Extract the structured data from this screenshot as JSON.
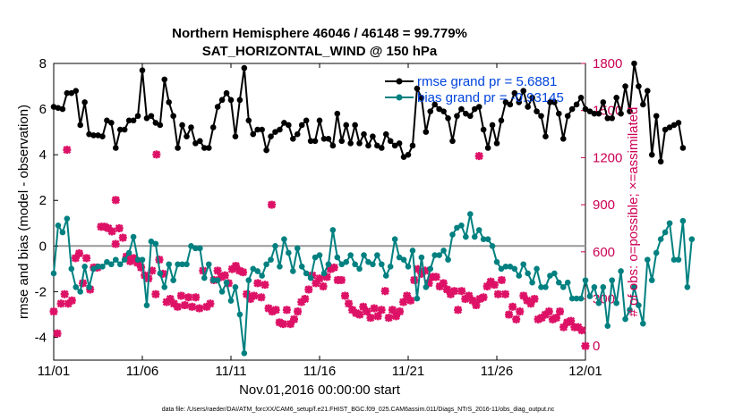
{
  "chart_data": {
    "type": "line",
    "title": "Northern Hemisphere 46046 / 46148 = 99.779%",
    "subtitle": "SAT_HORIZONTAL_WIND @ 150 hPa",
    "xlabel": "Nov.01,2016 00:00:00 start",
    "ylabel": "rmse and bias (model - observation)",
    "y2label": "# of obs: o=possible; ×=assimilated",
    "x_ticks": [
      "11/01",
      "11/06",
      "11/11",
      "11/16",
      "11/21",
      "11/26",
      "12/01"
    ],
    "y_ticks": [
      "-4",
      "-2",
      "0",
      "2",
      "4",
      "6",
      "8"
    ],
    "y2_ticks": [
      "0",
      "300",
      "600",
      "900",
      "1200",
      "1500",
      "1800"
    ],
    "xlim": [
      0,
      30
    ],
    "ylim": [
      -5,
      8
    ],
    "y2lim": [
      -90,
      1800
    ],
    "x_step_days": 0.25,
    "zero_line": 0,
    "legend_placement": "top-right",
    "series": [
      {
        "name": "rmse grand pr = 5.6881",
        "color": "#000000",
        "marker": "filled-circle",
        "axis": "left",
        "values": [
          6.1,
          6.05,
          6.0,
          6.7,
          6.7,
          6.8,
          5.3,
          6.3,
          4.9,
          4.85,
          4.85,
          4.8,
          5.5,
          5.4,
          4.3,
          5.1,
          5.1,
          5.5,
          5.5,
          5.7,
          7.7,
          5.6,
          5.7,
          5.4,
          5.3,
          7.3,
          6.3,
          5.7,
          4.3,
          5.3,
          4.8,
          5.2,
          4.5,
          4.6,
          4.3,
          4.3,
          5.2,
          6.1,
          6.4,
          6.7,
          6.4,
          4.8,
          6.4,
          7.8,
          5.5,
          4.9,
          5.1,
          5.1,
          4.2,
          4.8,
          5.0,
          5.1,
          5.4,
          5.3,
          4.7,
          4.9,
          5.3,
          5.5,
          4.6,
          4.6,
          5.5,
          4.7,
          4.7,
          4.4,
          5.8,
          4.6,
          5.3,
          4.5,
          5.3,
          4.5,
          4.9,
          4.4,
          4.8,
          4.4,
          4.3,
          4.9,
          4.6,
          4.4,
          4.5,
          3.9,
          4.0,
          4.4,
          6.9,
          6.5,
          5.0,
          5.9,
          6.2,
          6.0,
          5.9,
          5.6,
          4.6,
          5.7,
          6.0,
          5.8,
          5.7,
          6.0,
          6.1,
          5.1,
          4.3,
          5.3,
          4.5,
          5.5,
          6.3,
          6.2,
          6.7,
          6.3,
          6.8,
          6.1,
          6.5,
          5.9,
          5.7,
          4.8,
          6.3,
          6.3,
          5.8,
          4.7,
          5.7,
          6.0,
          6.2,
          6.5,
          6.0,
          5.9,
          5.8,
          5.8,
          6.3,
          5.6,
          5.6,
          6.5,
          5.8,
          7.0,
          5.9,
          8.0,
          7.0,
          6.2,
          6.8,
          4.0,
          5.7,
          3.7,
          5.1,
          5.2,
          5.3,
          5.4,
          4.3
        ]
      },
      {
        "name": "bias grand pr = -0.93145",
        "color": "#008080",
        "marker": "filled-circle",
        "axis": "left",
        "values": [
          -1.2,
          0.9,
          0.6,
          1.2,
          -1.0,
          -1.8,
          -2.0,
          -0.9,
          -1.8,
          -1.0,
          -0.9,
          -0.9,
          -0.7,
          -0.8,
          -0.6,
          -0.8,
          -0.6,
          -0.3,
          0.4,
          -0.6,
          -0.6,
          -2.6,
          0.2,
          0.1,
          -1.2,
          -1.8,
          -0.8,
          -1.5,
          -0.8,
          -0.8,
          -0.8,
          0.0,
          -0.1,
          -0.1,
          -1.4,
          -0.8,
          -1.5,
          -1.5,
          -2.0,
          -1.6,
          -2.4,
          -1.8,
          -3.0,
          -4.7,
          -1.5,
          -1.0,
          -1.1,
          -1.3,
          -0.8,
          -0.6,
          0.0,
          -0.9,
          0.3,
          -0.3,
          -1.1,
          -0.1,
          -0.9,
          -1.2,
          -1.4,
          -0.5,
          -0.4,
          -1.2,
          -0.8,
          0.7,
          -0.5,
          -0.8,
          -0.7,
          -0.4,
          -0.8,
          -1.0,
          -0.4,
          -0.7,
          -0.8,
          -0.4,
          -0.8,
          -1.3,
          -0.9,
          0.3,
          -0.5,
          -0.6,
          -0.9,
          -0.2,
          -2.3,
          -0.5,
          -1.8,
          -1.0,
          -0.4,
          -0.4,
          -0.2,
          -0.6,
          0.5,
          0.8,
          0.9,
          0.4,
          1.4,
          0.4,
          0.7,
          0.3,
          0.3,
          0.0,
          -0.7,
          -1.0,
          -0.9,
          -0.9,
          -1.0,
          -1.3,
          -0.8,
          -1.2,
          -1.6,
          -1.0,
          -1.8,
          -1.8,
          -1.3,
          -1.2,
          -1.6,
          -1.8,
          -1.6,
          -2.3,
          -2.3,
          -2.3,
          -1.5,
          -2.2,
          -1.8,
          -2.5,
          -1.8,
          -3.5,
          -1.5,
          -2.5,
          -1.1,
          -3.2,
          -2.8,
          -1.8,
          -2.6,
          -3.4,
          -0.6,
          -1.5,
          -0.3,
          0.3,
          0.6,
          1.0,
          -0.6,
          -0.6,
          1.1,
          -1.8,
          0.3
        ]
      },
      {
        "name": "possible",
        "color": "#cc0055",
        "marker": "none",
        "axis": "right",
        "values": []
      },
      {
        "name": "assimilated",
        "color": "#dd1166",
        "marker": "cross",
        "axis": "right",
        "values": [
          220,
          80,
          270,
          330,
          270,
          290,
          560,
          590,
          400,
          560,
          360,
          500,
          500,
          760,
          760,
          750,
          730,
          650,
          750,
          690,
          570,
          540,
          560,
          530,
          500,
          450,
          430,
          480,
          330,
          550,
          460,
          280,
          300,
          270,
          250,
          320,
          260,
          310,
          250,
          310,
          240,
          480,
          250,
          270,
          420,
          480,
          440,
          450,
          400,
          490,
          510,
          480,
          470,
          330,
          300,
          320,
          400,
          310,
          390,
          240,
          220,
          230,
          150,
          140,
          230,
          140,
          170,
          220,
          280,
          300,
          360,
          450,
          400,
          430,
          380,
          440,
          490,
          500,
          420,
          420,
          320,
          270,
          230,
          210,
          200,
          250,
          220,
          180,
          240,
          190,
          230,
          350,
          180,
          230,
          190,
          220,
          280,
          320,
          290,
          420,
          490,
          460,
          480,
          400,
          440,
          440,
          380,
          400,
          360,
          330,
          350,
          230,
          350,
          300,
          320,
          290,
          260,
          300,
          310,
          380,
          410,
          390,
          330,
          420,
          330,
          200,
          250,
          170,
          220,
          320,
          290,
          270,
          300,
          170,
          180,
          200,
          220,
          170,
          180,
          220,
          120,
          150,
          160,
          120,
          120,
          100
        ]
      }
    ],
    "isolated_points_right_axis": [
      {
        "x": 0.75,
        "y": 1250
      },
      {
        "x": 3.5,
        "y": 930
      },
      {
        "x": 5.8,
        "y": 1220
      },
      {
        "x": 12.3,
        "y": 900
      },
      {
        "x": 24.0,
        "y": 1210
      },
      {
        "x": 30.0,
        "y": 0
      }
    ]
  },
  "footer": {
    "datafile": "data file: /Users/raeder/DAI/ATM_forcXX/CAM6_setup/f.e21.FHIST_BGC.f09_025.CAM6assim.011/Diags_NTrS_2016-11/obs_diag_output.nc"
  }
}
